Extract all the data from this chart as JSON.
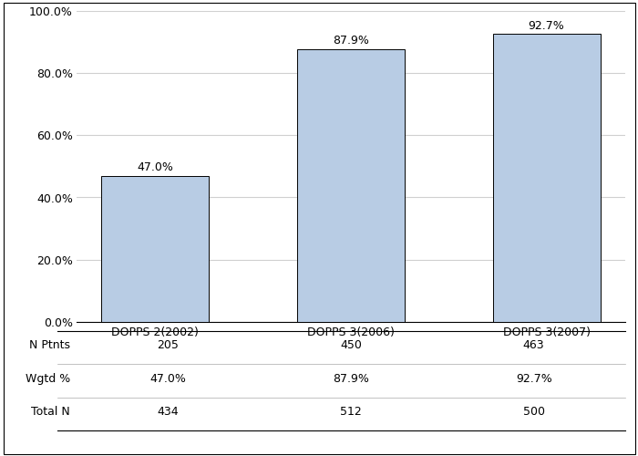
{
  "categories": [
    "DOPPS 2(2002)",
    "DOPPS 3(2006)",
    "DOPPS 3(2007)"
  ],
  "values": [
    47.0,
    87.9,
    92.7
  ],
  "bar_color": "#b8cce4",
  "bar_edge_color": "#000000",
  "ylim": [
    0,
    100
  ],
  "yticks": [
    0,
    20,
    40,
    60,
    80,
    100
  ],
  "ytick_labels": [
    "0.0%",
    "20.0%",
    "40.0%",
    "60.0%",
    "80.0%",
    "100.0%"
  ],
  "value_labels": [
    "47.0%",
    "87.9%",
    "92.7%"
  ],
  "table_row_labels": [
    "N Ptnts",
    "Wgtd %",
    "Total N"
  ],
  "table_data": [
    [
      "205",
      "450",
      "463"
    ],
    [
      "47.0%",
      "87.9%",
      "92.7%"
    ],
    [
      "434",
      "512",
      "500"
    ]
  ],
  "background_color": "#ffffff",
  "grid_color": "#d0d0d0",
  "font_size": 9,
  "bar_width": 0.55
}
